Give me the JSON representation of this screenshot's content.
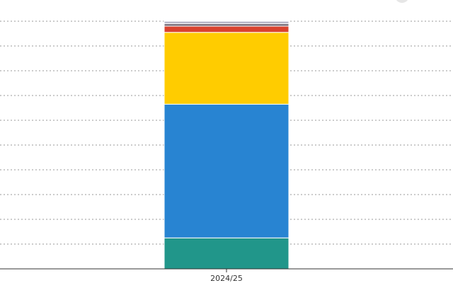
{
  "chart_data": {
    "type": "stacked-bar",
    "categories": [
      "2024/25"
    ],
    "series": [
      {
        "color": "#21968a",
        "values": [
          12.5
        ]
      },
      {
        "color": "#2884d2",
        "values": [
          54
        ]
      },
      {
        "color": "#ffcc00",
        "values": [
          29
        ]
      },
      {
        "color": "#d9432f",
        "values": [
          2.5
        ]
      },
      {
        "color": "#7a6f7a",
        "values": [
          1
        ]
      },
      {
        "color": "#b8b8c8",
        "values": [
          1
        ]
      }
    ],
    "ylim": [
      0,
      100
    ],
    "yticks": [
      0,
      10,
      20,
      30,
      40,
      50,
      60,
      70,
      80,
      90,
      100
    ],
    "grid": true
  }
}
